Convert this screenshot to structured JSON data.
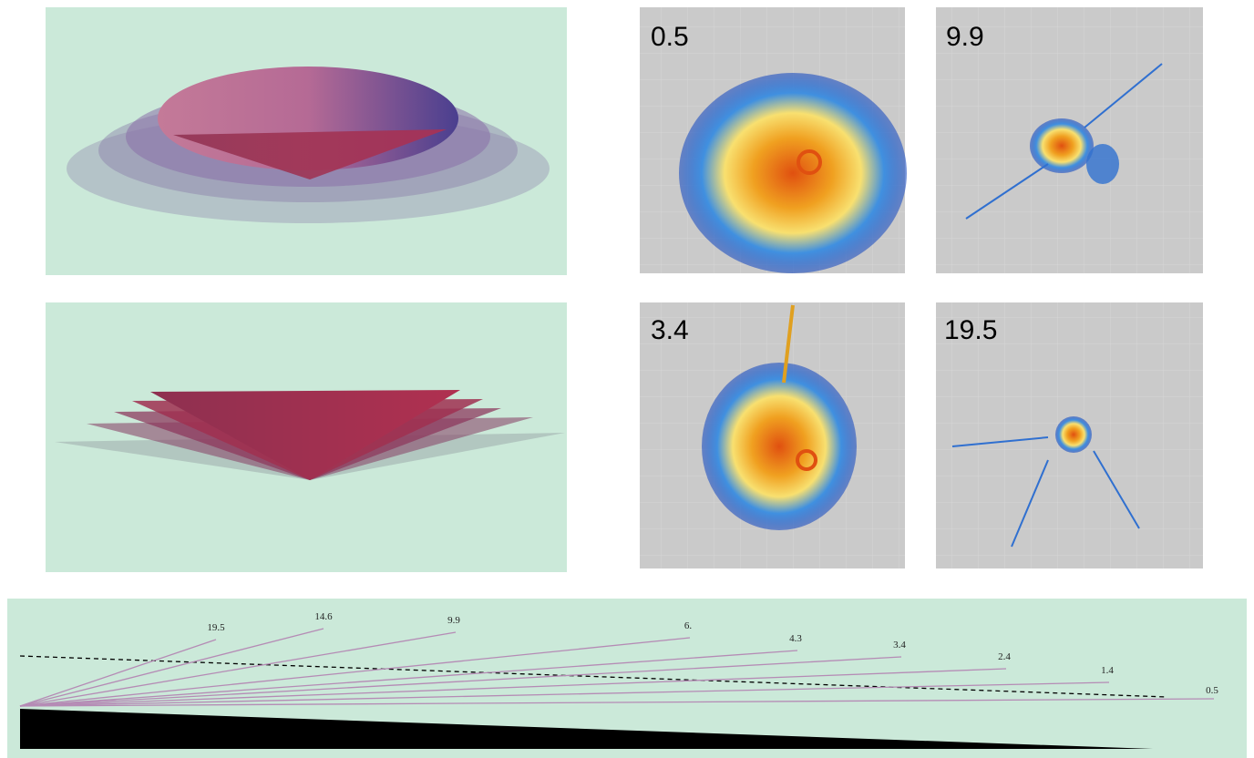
{
  "radar_panels": [
    {
      "label": "0.5"
    },
    {
      "label": "9.9"
    },
    {
      "label": "3.4"
    },
    {
      "label": "19.5"
    }
  ],
  "beams": [
    {
      "label": "19.5"
    },
    {
      "label": "14.6"
    },
    {
      "label": "9.9"
    },
    {
      "label": "6."
    },
    {
      "label": "4.3"
    },
    {
      "label": "3.4"
    },
    {
      "label": "2.4"
    },
    {
      "label": "1.4"
    },
    {
      "label": "0.5"
    }
  ]
}
